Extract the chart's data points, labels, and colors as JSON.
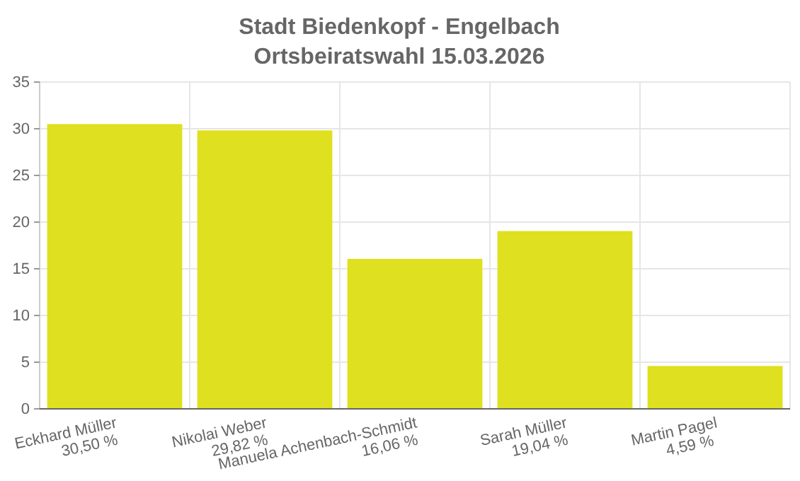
{
  "chart_data": {
    "type": "bar",
    "title": "Stadt Biedenkopf - Engelbach",
    "subtitle": "Ortsbeiratswahl 15.03.2026",
    "categories": [
      "Eckhard Müller",
      "Nikolai Weber",
      "Manuela Achenbach-Schmidt",
      "Sarah Müller",
      "Martin Pagel"
    ],
    "values": [
      30.5,
      29.82,
      16.06,
      19.04,
      4.59
    ],
    "value_labels": [
      "30,50 %",
      "29,82 %",
      "16,06 %",
      "19,04 %",
      "4,59 %"
    ],
    "color": "#dfe01f",
    "ylim": [
      0,
      35
    ],
    "yticks": [
      0,
      5,
      10,
      15,
      20,
      25,
      30,
      35
    ],
    "grid": true
  }
}
